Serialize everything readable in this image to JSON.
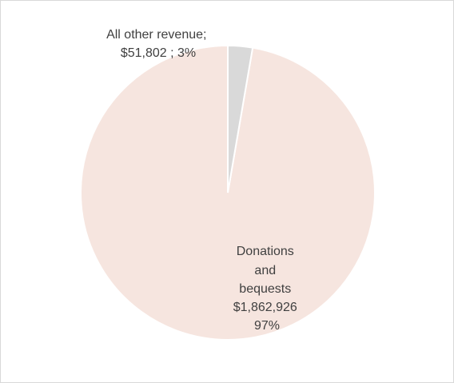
{
  "chart_data": {
    "type": "pie",
    "slices": [
      {
        "label_lines": [
          "Donations",
          "and",
          "bequests",
          "$1,862,926",
          "97%"
        ],
        "value": 1862926,
        "percent": 97,
        "color": "#f6e5df"
      },
      {
        "label_lines": [
          "All other revenue;",
          "$51,802 ; 3%"
        ],
        "value": 51802,
        "percent": 3,
        "color": "#d9d9d9"
      }
    ],
    "title": "",
    "legend": "none",
    "start_angle_deg": 0,
    "direction": "counterclockwise"
  }
}
